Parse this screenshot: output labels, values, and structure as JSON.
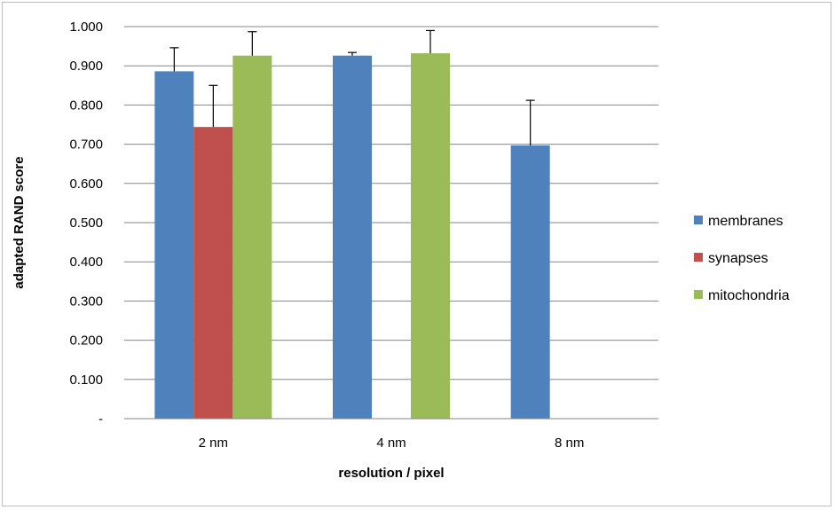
{
  "chart_data": {
    "type": "bar",
    "title": "",
    "xlabel": "resolution / pixel",
    "ylabel": "adapted RAND score",
    "categories": [
      "2 nm",
      "4 nm",
      "8 nm"
    ],
    "ylim": [
      0,
      1
    ],
    "ytick_values": [
      0,
      0.1,
      0.2,
      0.3,
      0.4,
      0.5,
      0.6,
      0.7,
      0.8,
      0.9,
      1.0
    ],
    "ytick_labels": [
      "-",
      "0.100",
      "0.200",
      "0.300",
      "0.400",
      "0.500",
      "0.600",
      "0.700",
      "0.800",
      "0.900",
      "1.000"
    ],
    "grid": true,
    "legend_position": "right",
    "series": [
      {
        "name": "membranes",
        "color": "#4f81bd",
        "values": [
          0.886,
          0.926,
          0.697
        ],
        "errors": [
          0.06,
          0.008,
          0.115
        ]
      },
      {
        "name": "synapses",
        "color": "#c0504d",
        "values": [
          0.744,
          0.0,
          0.0
        ],
        "errors": [
          0.106,
          0,
          0
        ]
      },
      {
        "name": "mitochondria",
        "color": "#9bbb59",
        "values": [
          0.926,
          0.932,
          0.0
        ],
        "errors": [
          0.061,
          0.058,
          0
        ]
      }
    ]
  }
}
